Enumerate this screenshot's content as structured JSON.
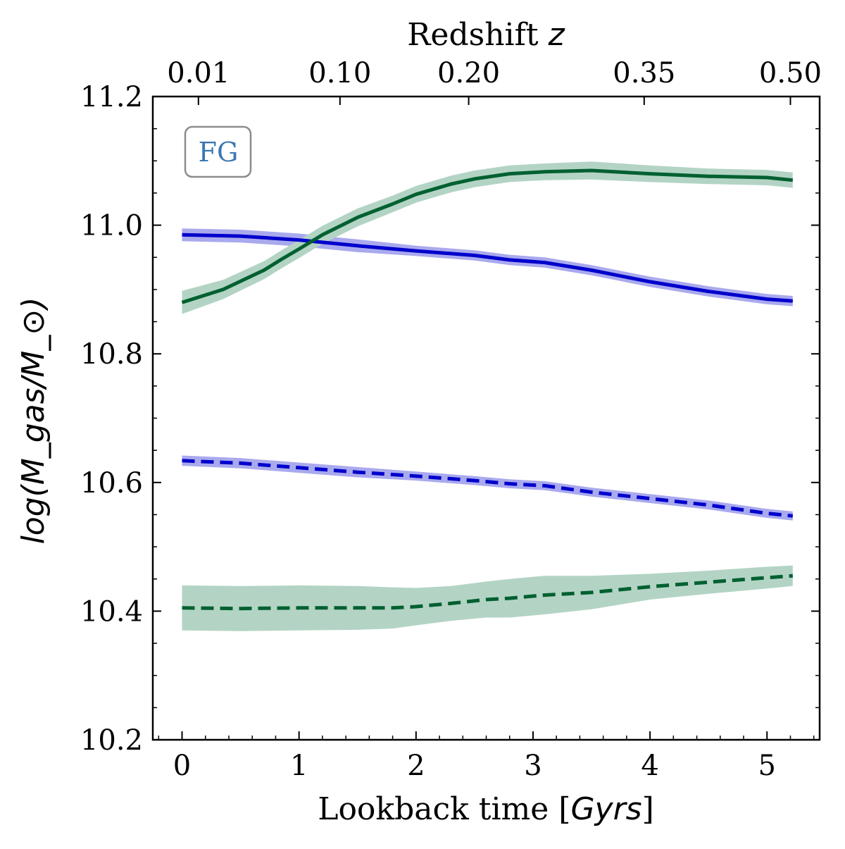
{
  "chart_data": {
    "type": "line",
    "title": "",
    "xlabel_prefix": "Lookback time [",
    "xlabel_italic": "Gyrs",
    "xlabel_suffix": "]",
    "ylabel": "log(M_gas/M_⊙)",
    "top_xlabel_prefix": "Redshift ",
    "top_xlabel_italic": "z",
    "xlim": [
      -0.25,
      5.45
    ],
    "ylim": [
      10.2,
      11.2
    ],
    "xticks": [
      "0",
      "1",
      "2",
      "3",
      "4",
      "5"
    ],
    "xtick_values": [
      0,
      1,
      2,
      3,
      4,
      5
    ],
    "yticks": [
      "10.2",
      "10.4",
      "10.6",
      "10.8",
      "11.0",
      "11.2"
    ],
    "ytick_values": [
      10.2,
      10.4,
      10.6,
      10.8,
      11.0,
      11.2
    ],
    "top_ticks": [
      {
        "label": "0.01",
        "x": 0.14
      },
      {
        "label": "0.10",
        "x": 1.35
      },
      {
        "label": "0.20",
        "x": 2.45
      },
      {
        "label": "0.35",
        "x": 3.95
      },
      {
        "label": "0.50",
        "x": 5.2
      }
    ],
    "annotation": "FG",
    "colors": {
      "blue": "#0000cc",
      "blue_band": "#a9a9ee",
      "green": "#006030",
      "green_band": "#b3d4c4",
      "annotation_text": "#3a78b0",
      "annotation_border": "#8c8c8c"
    },
    "series": [
      {
        "name": "blue-solid",
        "color": "blue",
        "band": "blue_band",
        "dashed": false,
        "x": [
          0,
          0.5,
          1.0,
          1.5,
          2.0,
          2.5,
          2.8,
          3.1,
          3.5,
          4.0,
          4.5,
          5.0,
          5.22
        ],
        "y": [
          10.985,
          10.983,
          10.977,
          10.968,
          10.96,
          10.953,
          10.946,
          10.942,
          10.93,
          10.912,
          10.897,
          10.885,
          10.882
        ],
        "err": [
          0.01,
          0.01,
          0.01,
          0.01,
          0.008,
          0.008,
          0.008,
          0.008,
          0.008,
          0.008,
          0.008,
          0.008,
          0.008
        ]
      },
      {
        "name": "green-solid",
        "color": "green",
        "band": "green_band",
        "dashed": false,
        "x": [
          0,
          0.35,
          0.7,
          0.85,
          1.0,
          1.2,
          1.5,
          1.8,
          2.0,
          2.3,
          2.5,
          2.8,
          3.1,
          3.5,
          4.0,
          4.5,
          5.0,
          5.22
        ],
        "y": [
          10.88,
          10.9,
          10.93,
          10.947,
          10.963,
          10.985,
          11.012,
          11.033,
          11.048,
          11.064,
          11.072,
          11.08,
          11.083,
          11.085,
          11.08,
          11.076,
          11.074,
          11.07
        ],
        "err": [
          0.018,
          0.015,
          0.014,
          0.014,
          0.014,
          0.014,
          0.014,
          0.013,
          0.013,
          0.013,
          0.013,
          0.013,
          0.013,
          0.014,
          0.013,
          0.012,
          0.012,
          0.012
        ]
      },
      {
        "name": "blue-dashed",
        "color": "blue",
        "band": "blue_band",
        "dashed": true,
        "x": [
          0,
          0.5,
          1.0,
          1.5,
          2.0,
          2.5,
          2.8,
          3.1,
          3.5,
          4.0,
          4.5,
          5.0,
          5.22
        ],
        "y": [
          10.634,
          10.63,
          10.623,
          10.616,
          10.61,
          10.603,
          10.598,
          10.595,
          10.585,
          10.575,
          10.565,
          10.552,
          10.548
        ],
        "err": [
          0.008,
          0.008,
          0.008,
          0.008,
          0.007,
          0.007,
          0.007,
          0.007,
          0.007,
          0.007,
          0.007,
          0.007,
          0.007
        ]
      },
      {
        "name": "green-dashed",
        "color": "green",
        "band": "green_band",
        "dashed": true,
        "x": [
          0,
          0.5,
          1.0,
          1.5,
          1.8,
          2.0,
          2.3,
          2.6,
          2.8,
          3.1,
          3.5,
          4.0,
          4.5,
          5.0,
          5.22
        ],
        "y": [
          10.405,
          10.404,
          10.405,
          10.405,
          10.405,
          10.407,
          10.412,
          10.418,
          10.42,
          10.425,
          10.429,
          10.438,
          10.445,
          10.452,
          10.455
        ],
        "err": [
          0.035,
          0.035,
          0.035,
          0.034,
          0.032,
          0.029,
          0.027,
          0.028,
          0.03,
          0.03,
          0.026,
          0.02,
          0.018,
          0.017,
          0.016
        ]
      }
    ]
  }
}
